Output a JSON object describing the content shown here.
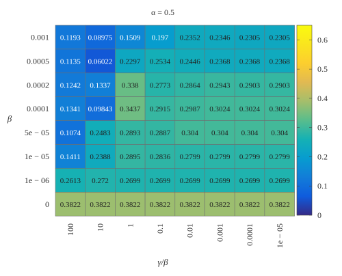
{
  "chart_data": {
    "type": "heatmap",
    "title": "α = 0.5",
    "xlabel": "γ/β",
    "ylabel": "β",
    "x_categories": [
      "100",
      "10",
      "1",
      "0.1",
      "0.01",
      "0.001",
      "0.0001",
      "1e − 05"
    ],
    "y_categories": [
      "0.001",
      "0.0005",
      "0.0002",
      "0.0001",
      "5e − 05",
      "1e − 05",
      "1e − 06",
      "0"
    ],
    "values": [
      [
        0.1193,
        0.08975,
        0.1509,
        0.197,
        0.2352,
        0.2346,
        0.2305,
        0.2305
      ],
      [
        0.1135,
        0.06022,
        0.2297,
        0.2534,
        0.2446,
        0.2368,
        0.2368,
        0.2368
      ],
      [
        0.1242,
        0.1337,
        0.338,
        0.2773,
        0.2864,
        0.2943,
        0.2903,
        0.2903
      ],
      [
        0.1341,
        0.09843,
        0.3437,
        0.2915,
        0.2987,
        0.3024,
        0.3024,
        0.3024
      ],
      [
        0.1074,
        0.2483,
        0.2893,
        0.2887,
        0.304,
        0.304,
        0.304,
        0.304
      ],
      [
        0.1411,
        0.2388,
        0.2895,
        0.2836,
        0.2799,
        0.2799,
        0.2799,
        0.2799
      ],
      [
        0.2613,
        0.272,
        0.2699,
        0.2699,
        0.2699,
        0.2699,
        0.2699,
        0.2699
      ],
      [
        0.3822,
        0.3822,
        0.3822,
        0.3822,
        0.3822,
        0.3822,
        0.3822,
        0.3822
      ]
    ],
    "value_labels": [
      [
        "0.1193",
        "0.08975",
        "0.1509",
        "0.197",
        "0.2352",
        "0.2346",
        "0.2305",
        "0.2305"
      ],
      [
        "0.1135",
        "0.06022",
        "0.2297",
        "0.2534",
        "0.2446",
        "0.2368",
        "0.2368",
        "0.2368"
      ],
      [
        "0.1242",
        "0.1337",
        "0.338",
        "0.2773",
        "0.2864",
        "0.2943",
        "0.2903",
        "0.2903"
      ],
      [
        "0.1341",
        "0.09843",
        "0.3437",
        "0.2915",
        "0.2987",
        "0.3024",
        "0.3024",
        "0.3024"
      ],
      [
        "0.1074",
        "0.2483",
        "0.2893",
        "0.2887",
        "0.304",
        "0.304",
        "0.304",
        "0.304"
      ],
      [
        "0.1411",
        "0.2388",
        "0.2895",
        "0.2836",
        "0.2799",
        "0.2799",
        "0.2799",
        "0.2799"
      ],
      [
        "0.2613",
        "0.272",
        "0.2699",
        "0.2699",
        "0.2699",
        "0.2699",
        "0.2699",
        "0.2699"
      ],
      [
        "0.3822",
        "0.3822",
        "0.3822",
        "0.3822",
        "0.3822",
        "0.3822",
        "0.3822",
        "0.3822"
      ]
    ],
    "colorbar": {
      "range": [
        0,
        0.65
      ],
      "ticks": [
        0,
        0.1,
        0.2,
        0.3,
        0.4,
        0.5,
        0.6
      ],
      "tick_labels": [
        "0",
        "0.1",
        "0.2",
        "0.3",
        "0.4",
        "0.5",
        "0.6"
      ],
      "colormap": "parula",
      "placement": "right"
    },
    "grid": true
  }
}
